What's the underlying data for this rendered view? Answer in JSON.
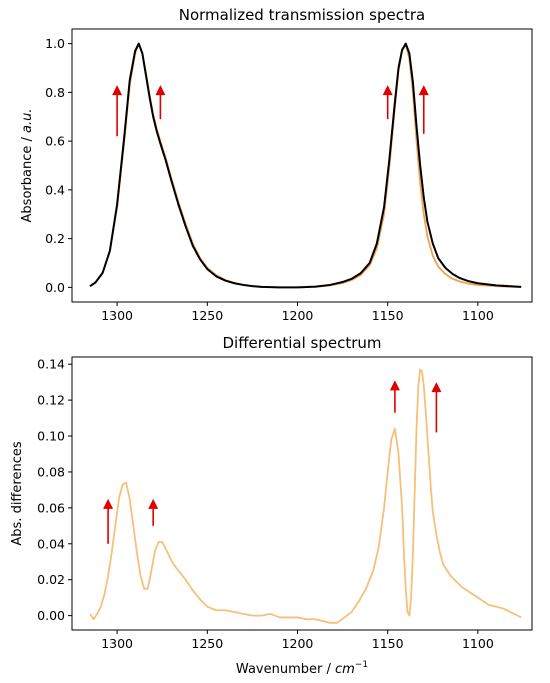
{
  "chart_data": [
    {
      "type": "line",
      "title": "Normalized transmission spectra",
      "xlabel": "",
      "ylabel_prefix": "Absorbance / ",
      "ylabel_unit": "a.u.",
      "xlim": [
        1325,
        1070
      ],
      "ylim": [
        -0.06,
        1.06
      ],
      "x_ticks": [
        1300,
        1250,
        1200,
        1150,
        1100
      ],
      "y_ticks": [
        0.0,
        0.2,
        0.4,
        0.6,
        0.8,
        1.0
      ],
      "y_tick_labels": [
        "0.0",
        "0.2",
        "0.4",
        "0.6",
        "0.8",
        "1.0"
      ],
      "grid": false,
      "series": [
        {
          "color": "#f0a050",
          "x": [
            1315,
            1312,
            1308,
            1304,
            1300,
            1296,
            1293,
            1290,
            1288,
            1286,
            1284,
            1282,
            1280,
            1278,
            1276,
            1273,
            1270,
            1266,
            1262,
            1258,
            1254,
            1250,
            1245,
            1240,
            1235,
            1230,
            1225,
            1220,
            1210,
            1200,
            1190,
            1182,
            1175,
            1170,
            1165,
            1160,
            1156,
            1152,
            1149,
            1146,
            1144,
            1142,
            1140,
            1138,
            1136,
            1134,
            1132,
            1130,
            1128,
            1125,
            1122,
            1118,
            1114,
            1110,
            1105,
            1100,
            1090,
            1076
          ],
          "y": [
            0.005,
            0.02,
            0.06,
            0.15,
            0.33,
            0.6,
            0.83,
            0.96,
            1.0,
            0.96,
            0.88,
            0.79,
            0.71,
            0.65,
            0.6,
            0.53,
            0.45,
            0.35,
            0.26,
            0.18,
            0.12,
            0.08,
            0.05,
            0.03,
            0.018,
            0.01,
            0.005,
            0.002,
            0.0,
            0.0,
            0.002,
            0.008,
            0.018,
            0.03,
            0.05,
            0.09,
            0.16,
            0.3,
            0.5,
            0.74,
            0.89,
            0.97,
            0.995,
            0.94,
            0.8,
            0.6,
            0.43,
            0.3,
            0.21,
            0.13,
            0.085,
            0.055,
            0.035,
            0.024,
            0.015,
            0.01,
            0.005,
            0.001
          ]
        },
        {
          "color": "#000000",
          "x": [
            1315,
            1312,
            1308,
            1304,
            1300,
            1296,
            1293,
            1290,
            1288,
            1286,
            1284,
            1282,
            1280,
            1278,
            1276,
            1273,
            1270,
            1266,
            1262,
            1258,
            1254,
            1250,
            1245,
            1240,
            1235,
            1230,
            1225,
            1220,
            1210,
            1200,
            1190,
            1182,
            1175,
            1170,
            1165,
            1160,
            1156,
            1152,
            1149,
            1146,
            1144,
            1142,
            1140,
            1138,
            1136,
            1134,
            1132,
            1130,
            1128,
            1125,
            1122,
            1118,
            1114,
            1110,
            1105,
            1100,
            1090,
            1076
          ],
          "y": [
            0.005,
            0.02,
            0.06,
            0.15,
            0.34,
            0.62,
            0.85,
            0.97,
            1.0,
            0.96,
            0.87,
            0.78,
            0.7,
            0.64,
            0.59,
            0.52,
            0.44,
            0.34,
            0.25,
            0.17,
            0.115,
            0.075,
            0.045,
            0.028,
            0.017,
            0.01,
            0.005,
            0.002,
            0.0,
            0.0,
            0.003,
            0.01,
            0.022,
            0.035,
            0.058,
            0.1,
            0.18,
            0.33,
            0.53,
            0.76,
            0.9,
            0.975,
            1.0,
            0.96,
            0.84,
            0.66,
            0.5,
            0.37,
            0.27,
            0.18,
            0.12,
            0.08,
            0.055,
            0.038,
            0.025,
            0.017,
            0.008,
            0.002
          ]
        }
      ],
      "annotations": [
        {
          "type": "arrow",
          "x": 1300,
          "y_from": 0.62,
          "y_to": 0.83,
          "color": "#e00000"
        },
        {
          "type": "arrow",
          "x": 1276,
          "y_from": 0.69,
          "y_to": 0.83,
          "color": "#e00000"
        },
        {
          "type": "arrow",
          "x": 1150,
          "y_from": 0.69,
          "y_to": 0.83,
          "color": "#e00000"
        },
        {
          "type": "arrow",
          "x": 1130,
          "y_from": 0.63,
          "y_to": 0.83,
          "color": "#e00000"
        }
      ]
    },
    {
      "type": "line",
      "title": "Differential spectrum",
      "xlabel_prefix": "Wavenumber / ",
      "xlabel_unit": "cm",
      "xlabel_sup": "−1",
      "ylabel": "Abs. differences",
      "xlim": [
        1325,
        1070
      ],
      "ylim": [
        -0.008,
        0.144
      ],
      "x_ticks": [
        1300,
        1250,
        1200,
        1150,
        1100
      ],
      "y_ticks": [
        0.0,
        0.02,
        0.04,
        0.06,
        0.08,
        0.1,
        0.12,
        0.14
      ],
      "y_tick_labels": [
        "0.00",
        "0.02",
        "0.04",
        "0.06",
        "0.08",
        "0.10",
        "0.12",
        "0.14"
      ],
      "grid": false,
      "series": [
        {
          "color": "#f5c07a",
          "x": [
            1315,
            1313,
            1311,
            1309,
            1307,
            1305,
            1303,
            1301,
            1299,
            1297,
            1295,
            1293,
            1291,
            1289,
            1287,
            1285,
            1283,
            1281,
            1279,
            1277,
            1275,
            1272,
            1269,
            1266,
            1262,
            1258,
            1254,
            1250,
            1245,
            1240,
            1235,
            1230,
            1225,
            1220,
            1215,
            1210,
            1205,
            1200,
            1195,
            1190,
            1186,
            1182,
            1178,
            1174,
            1170,
            1166,
            1162,
            1158,
            1155,
            1152,
            1150,
            1148,
            1146,
            1144,
            1142,
            1141,
            1140,
            1139,
            1138,
            1137,
            1136,
            1135,
            1134,
            1133,
            1132,
            1131,
            1130,
            1129,
            1128,
            1127,
            1126,
            1125,
            1123,
            1121,
            1119,
            1117,
            1115,
            1113,
            1111,
            1109,
            1106,
            1103,
            1100,
            1097,
            1094,
            1090,
            1086,
            1082,
            1078,
            1076
          ],
          "y": [
            0.001,
            -0.002,
            0.001,
            0.005,
            0.012,
            0.022,
            0.035,
            0.05,
            0.065,
            0.073,
            0.074,
            0.065,
            0.05,
            0.035,
            0.022,
            0.015,
            0.015,
            0.025,
            0.036,
            0.041,
            0.041,
            0.035,
            0.029,
            0.025,
            0.02,
            0.014,
            0.009,
            0.005,
            0.003,
            0.003,
            0.002,
            0.001,
            0.0,
            0.0,
            0.001,
            -0.001,
            -0.001,
            -0.001,
            -0.002,
            -0.002,
            -0.003,
            -0.004,
            -0.004,
            -0.001,
            0.002,
            0.008,
            0.015,
            0.025,
            0.038,
            0.06,
            0.08,
            0.098,
            0.104,
            0.09,
            0.06,
            0.035,
            0.015,
            0.002,
            0.0,
            0.01,
            0.035,
            0.07,
            0.105,
            0.128,
            0.137,
            0.136,
            0.128,
            0.115,
            0.1,
            0.085,
            0.07,
            0.058,
            0.045,
            0.035,
            0.028,
            0.025,
            0.022,
            0.02,
            0.018,
            0.016,
            0.014,
            0.012,
            0.01,
            0.008,
            0.006,
            0.005,
            0.004,
            0.002,
            0.0,
            -0.001
          ]
        }
      ],
      "annotations": [
        {
          "type": "arrow",
          "x": 1305,
          "y_from": 0.04,
          "y_to": 0.065,
          "color": "#e00000"
        },
        {
          "type": "arrow",
          "x": 1280,
          "y_from": 0.05,
          "y_to": 0.065,
          "color": "#e00000"
        },
        {
          "type": "arrow",
          "x": 1146,
          "y_from": 0.113,
          "y_to": 0.131,
          "color": "#e00000"
        },
        {
          "type": "arrow",
          "x": 1123,
          "y_from": 0.102,
          "y_to": 0.13,
          "color": "#e00000"
        }
      ]
    }
  ]
}
